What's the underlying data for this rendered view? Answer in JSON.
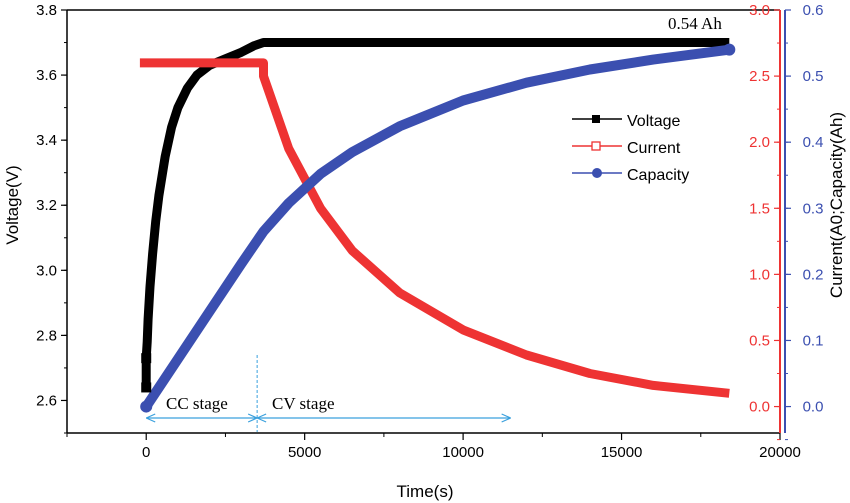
{
  "chart_data": {
    "type": "line",
    "title": "",
    "xlabel": "Time(s)",
    "ylabel_left": "Voltage(V)",
    "ylabel_right": "Current(A0;Capacity(Ah)",
    "xlim": [
      -2500,
      20000
    ],
    "ylim_left": [
      2.5,
      3.8
    ],
    "ylim_right_current": [
      -0.2,
      3.0
    ],
    "ylim_right_capacity": [
      -0.04,
      0.6
    ],
    "x_ticks": [
      0,
      5000,
      10000,
      15000,
      20000
    ],
    "y_left_ticks": [
      2.6,
      2.8,
      3.0,
      3.2,
      3.4,
      3.6,
      3.8
    ],
    "y_left_tick_labels": [
      "2.6",
      "2.8",
      "3.0",
      "3.2",
      "3.4",
      "3.6",
      "3.8"
    ],
    "y_current_ticks": [
      0.0,
      0.5,
      1.0,
      1.5,
      2.0,
      2.5,
      3.0
    ],
    "y_current_tick_labels": [
      "0.0",
      "0.5",
      "1.0",
      "1.5",
      "2.0",
      "2.5",
      "3.0"
    ],
    "y_capacity_ticks": [
      0.0,
      0.1,
      0.2,
      0.3,
      0.4,
      0.5,
      0.6
    ],
    "y_capacity_tick_labels": [
      "0.0",
      "0.1",
      "0.2",
      "0.3",
      "0.4",
      "0.5",
      "0.6"
    ],
    "legend_position": "center-right",
    "series": [
      {
        "name": "Voltage",
        "axis": "left",
        "color": "#000000",
        "marker": "filled-square",
        "points": [
          [
            0,
            2.64
          ],
          [
            0,
            2.73
          ],
          [
            30,
            2.78
          ],
          [
            60,
            2.85
          ],
          [
            120,
            2.95
          ],
          [
            200,
            3.05
          ],
          [
            300,
            3.15
          ],
          [
            400,
            3.23
          ],
          [
            600,
            3.35
          ],
          [
            800,
            3.44
          ],
          [
            1000,
            3.5
          ],
          [
            1300,
            3.56
          ],
          [
            1600,
            3.6
          ],
          [
            2000,
            3.63
          ],
          [
            2500,
            3.65
          ],
          [
            3000,
            3.67
          ],
          [
            3400,
            3.69
          ],
          [
            3700,
            3.7
          ],
          [
            18400,
            3.7
          ]
        ]
      },
      {
        "name": "Current",
        "axis": "right_current",
        "color": "#ee3333",
        "marker": "open-square",
        "points": [
          [
            -200,
            2.6
          ],
          [
            3700,
            2.6
          ],
          [
            3700,
            2.5
          ],
          [
            4500,
            1.95
          ],
          [
            5500,
            1.5
          ],
          [
            6500,
            1.18
          ],
          [
            8000,
            0.86
          ],
          [
            10000,
            0.58
          ],
          [
            12000,
            0.39
          ],
          [
            14000,
            0.25
          ],
          [
            16000,
            0.16
          ],
          [
            18400,
            0.1
          ]
        ]
      },
      {
        "name": "Capacity",
        "axis": "right_capacity",
        "color": "#3b4fb0",
        "marker": "filled-circle",
        "points": [
          [
            0,
            0.0
          ],
          [
            1000,
            0.072
          ],
          [
            2000,
            0.144
          ],
          [
            3000,
            0.216
          ],
          [
            3700,
            0.265
          ],
          [
            4500,
            0.308
          ],
          [
            5500,
            0.352
          ],
          [
            6500,
            0.385
          ],
          [
            8000,
            0.424
          ],
          [
            10000,
            0.463
          ],
          [
            12000,
            0.49
          ],
          [
            14000,
            0.51
          ],
          [
            16000,
            0.525
          ],
          [
            18400,
            0.54
          ]
        ]
      }
    ],
    "annotations": {
      "capacity_label": "0.54 Ah",
      "cc_stage": "CC stage",
      "cv_stage": "CV stage",
      "cc_range": [
        0,
        3500
      ],
      "cv_range": [
        3500,
        11500
      ]
    }
  }
}
